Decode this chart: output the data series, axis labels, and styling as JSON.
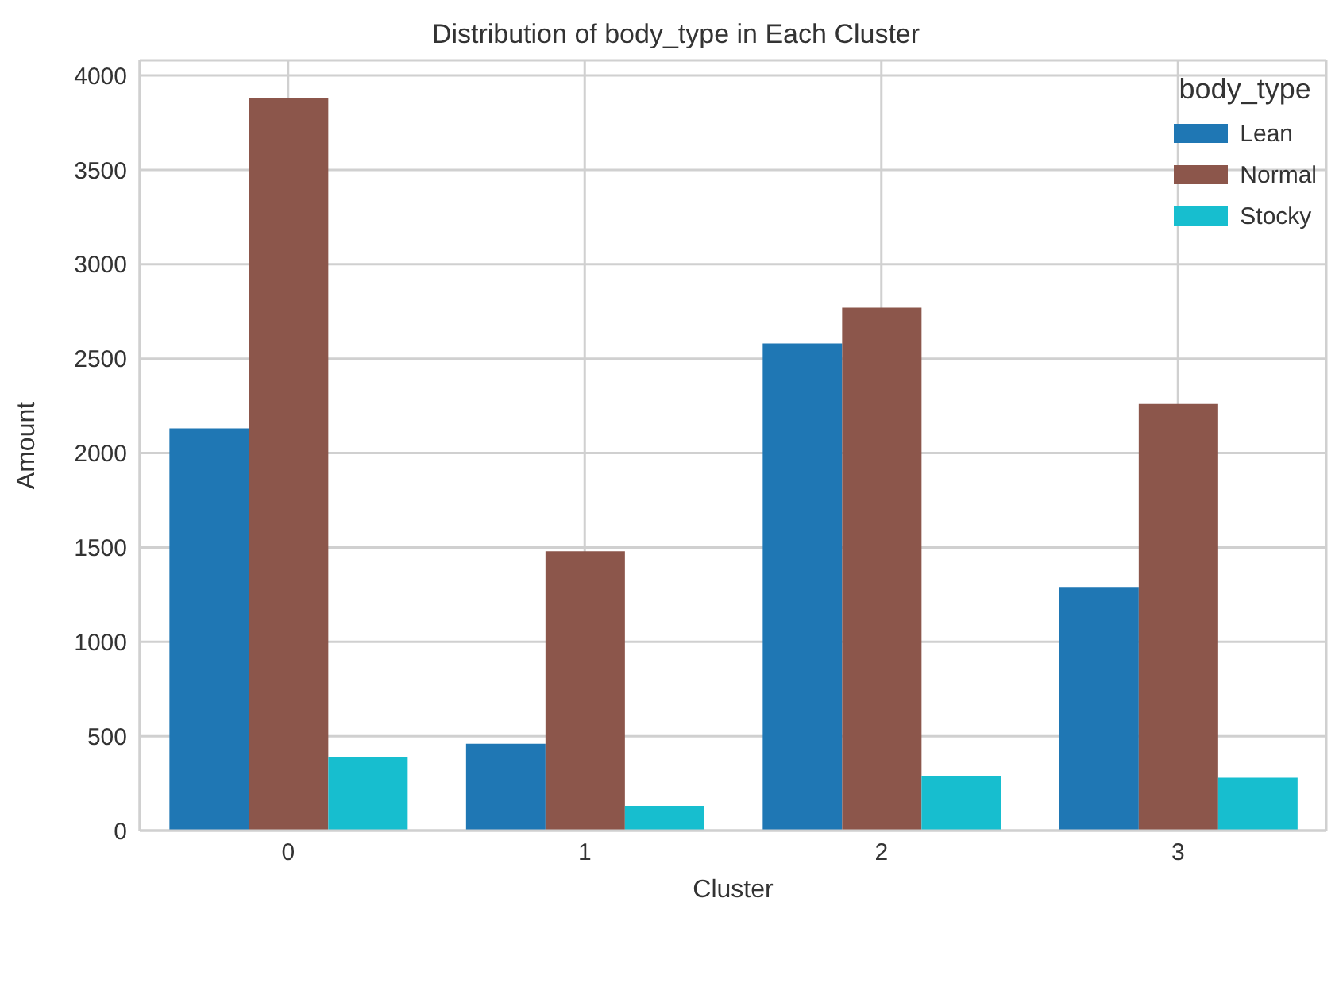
{
  "chart_data": {
    "type": "bar",
    "title": "Distribution of body_type in Each Cluster",
    "xlabel": "Cluster",
    "ylabel": "Amount",
    "legend_title": "body_type",
    "categories": [
      "0",
      "1",
      "2",
      "3"
    ],
    "series": [
      {
        "name": "Lean",
        "color": "#1f77b4",
        "values": [
          2130,
          460,
          2580,
          1290
        ]
      },
      {
        "name": "Normal",
        "color": "#8c564b",
        "values": [
          3880,
          1480,
          2770,
          2260
        ]
      },
      {
        "name": "Stocky",
        "color": "#17becf",
        "values": [
          390,
          130,
          290,
          280
        ]
      }
    ],
    "ylim": [
      0,
      4080
    ],
    "yticks": [
      0,
      500,
      1000,
      1500,
      2000,
      2500,
      3000,
      3500,
      4000
    ],
    "grid": true,
    "legend": "top right"
  }
}
